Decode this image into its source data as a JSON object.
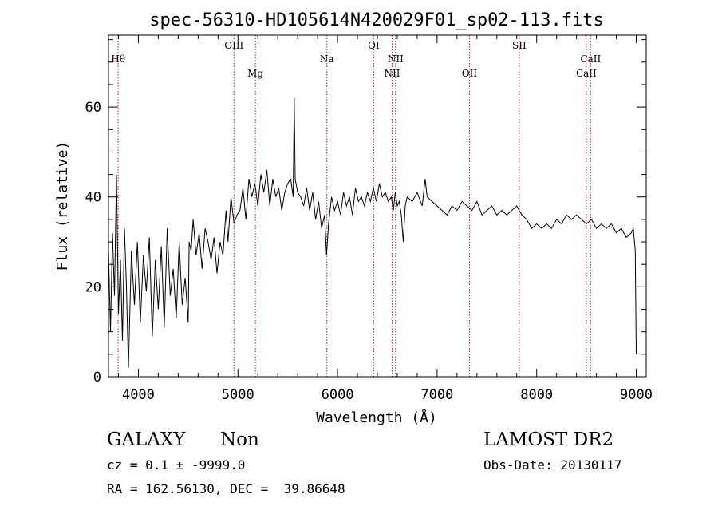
{
  "chart_data": {
    "type": "line",
    "title": "spec-56310-HD105614N420029F01_sp02-113.fits",
    "xlabel": "Wavelength (Å)",
    "ylabel": "Flux (relative)",
    "xlim": [
      3700,
      9100
    ],
    "ylim": [
      0,
      76
    ],
    "x_ticks": [
      4000,
      5000,
      6000,
      7000,
      8000,
      9000
    ],
    "y_ticks": [
      0,
      20,
      40,
      60
    ],
    "grid": false,
    "line_color": "#000000",
    "marker_color": "#b22222",
    "series": [
      {
        "x": [
          3700,
          3720,
          3740,
          3760,
          3780,
          3800,
          3820,
          3840,
          3860,
          3880,
          3900,
          3930,
          3960,
          3990,
          4020,
          4050,
          4080,
          4110,
          4140,
          4170,
          4200,
          4230,
          4260,
          4290,
          4320,
          4350,
          4380,
          4410,
          4440,
          4470,
          4500,
          4510,
          4530,
          4550,
          4580,
          4610,
          4640,
          4670,
          4700,
          4730,
          4760,
          4790,
          4820,
          4850,
          4880,
          4900,
          4930,
          4960,
          4990,
          5020,
          5050,
          5080,
          5110,
          5140,
          5170,
          5200,
          5230,
          5260,
          5290,
          5320,
          5350,
          5380,
          5410,
          5440,
          5470,
          5500,
          5530,
          5555,
          5565,
          5575,
          5600,
          5630,
          5660,
          5690,
          5720,
          5750,
          5780,
          5810,
          5840,
          5870,
          5890,
          5910,
          5940,
          5970,
          6000,
          6030,
          6060,
          6090,
          6120,
          6150,
          6180,
          6210,
          6240,
          6270,
          6300,
          6330,
          6360,
          6390,
          6420,
          6450,
          6480,
          6510,
          6540,
          6560,
          6580,
          6600,
          6620,
          6640,
          6660,
          6680,
          6700,
          6750,
          6800,
          6850,
          6880,
          6900,
          6950,
          7000,
          7050,
          7100,
          7150,
          7200,
          7250,
          7300,
          7350,
          7400,
          7450,
          7500,
          7550,
          7600,
          7650,
          7700,
          7750,
          7800,
          7850,
          7900,
          7950,
          8000,
          8050,
          8100,
          8150,
          8200,
          8250,
          8300,
          8350,
          8400,
          8450,
          8500,
          8550,
          8600,
          8650,
          8700,
          8750,
          8800,
          8850,
          8900,
          8950,
          8970,
          8990,
          9000
        ],
        "y": [
          28,
          10,
          32,
          18,
          45,
          14,
          26,
          8,
          33,
          20,
          2,
          28,
          16,
          30,
          12,
          27,
          19,
          31,
          9,
          26,
          15,
          29,
          11,
          33,
          18,
          24,
          13,
          30,
          16,
          22,
          12,
          30,
          28,
          35,
          27,
          32,
          24,
          33,
          30,
          26,
          31,
          23,
          30,
          27,
          37,
          30,
          40,
          34,
          36,
          37,
          42,
          35,
          44,
          40,
          43,
          38,
          45,
          41,
          46,
          38,
          44,
          40,
          42,
          37,
          41,
          43,
          44,
          40,
          62,
          44,
          41,
          40,
          38,
          42,
          37,
          41,
          35,
          39,
          33,
          36,
          27,
          34,
          40,
          37,
          39,
          36,
          41,
          38,
          40,
          36,
          42,
          39,
          40,
          38,
          41,
          39,
          42,
          39,
          43,
          40,
          41,
          39,
          40,
          37,
          41,
          38,
          39,
          36,
          30,
          38,
          40,
          39,
          41,
          38,
          44,
          40,
          39,
          38,
          37,
          36,
          38,
          37,
          39,
          38,
          37,
          39,
          36,
          37,
          38,
          36,
          37,
          36,
          37,
          38,
          36,
          35,
          33,
          34,
          33,
          34,
          33,
          35,
          34,
          36,
          35,
          36,
          35,
          34,
          35,
          33,
          34,
          33,
          34,
          32,
          33,
          31,
          32,
          33,
          28,
          5
        ]
      }
    ],
    "line_markers": [
      {
        "label": "Hθ",
        "x": 3797,
        "row": "upper"
      },
      {
        "label": "OIII",
        "x": 4960,
        "row": "high"
      },
      {
        "label": "Mg",
        "x": 5175,
        "row": "lower"
      },
      {
        "label": "Na",
        "x": 5893,
        "row": "upper"
      },
      {
        "label": "OI",
        "x": 6363,
        "row": "high"
      },
      {
        "label": "NII",
        "x": 6548,
        "row": "lower"
      },
      {
        "label": "NII",
        "x": 6583,
        "row": "upper"
      },
      {
        "label": "OII",
        "x": 7325,
        "row": "lower"
      },
      {
        "label": "SII",
        "x": 7825,
        "row": "high"
      },
      {
        "label": "CaII",
        "x": 8498,
        "row": "lower"
      },
      {
        "label": "CaII",
        "x": 8542,
        "row": "upper"
      }
    ]
  },
  "info": {
    "object_class": "GALAXY",
    "subclass": "Non",
    "survey": "LAMOST DR2",
    "redshift": "cz = 0.1 ± -9999.0",
    "obs_date": "Obs-Date: 20130117",
    "coords": "RA = 162.56130, DEC =  39.86648"
  }
}
